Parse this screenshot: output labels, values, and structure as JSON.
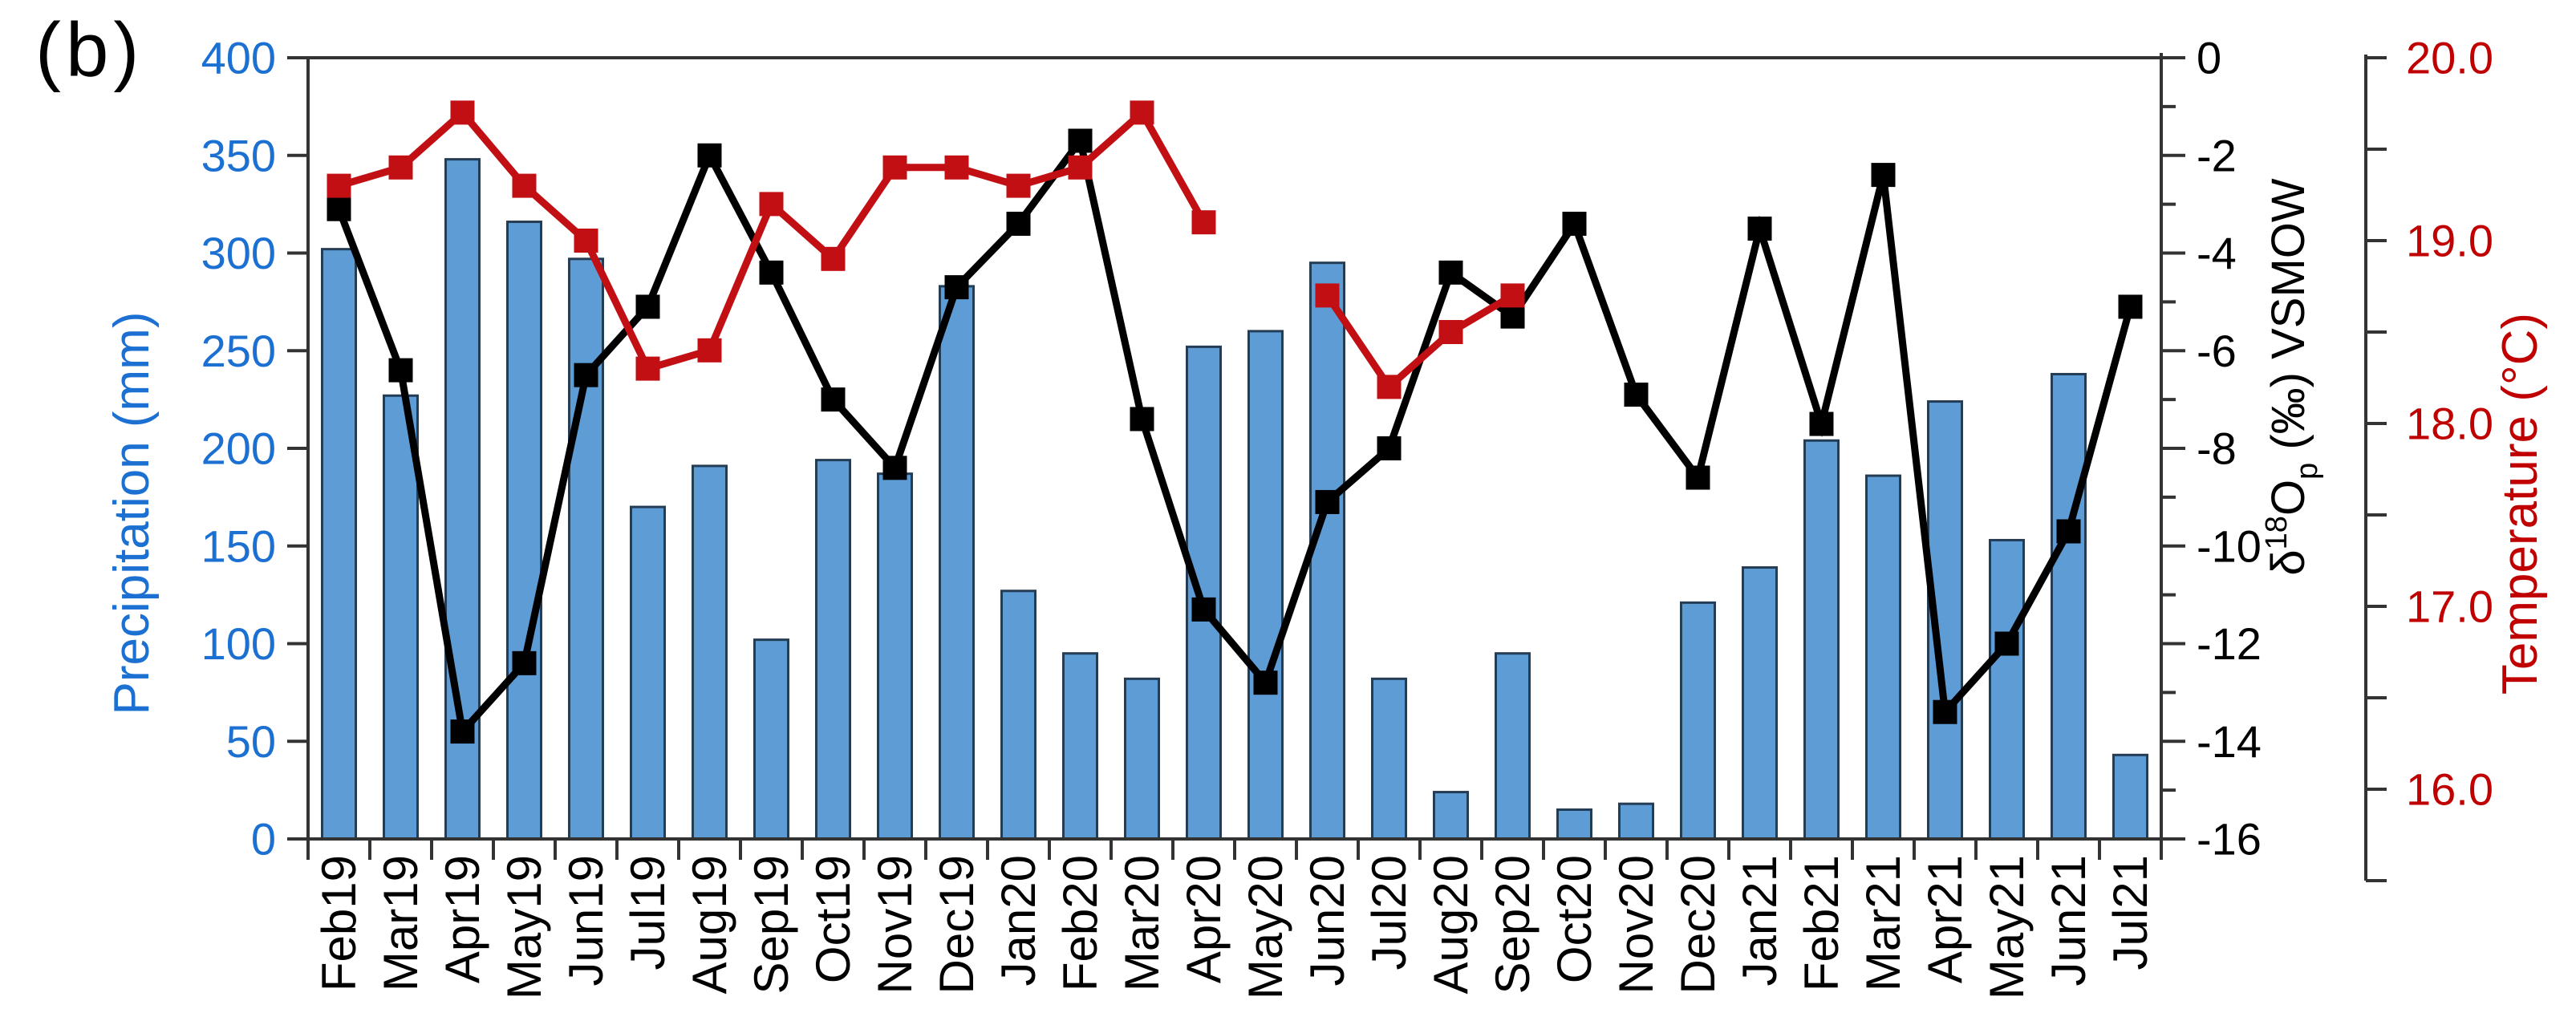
{
  "panel_label": "(b)",
  "colors": {
    "bar_fill": "#5E9CD6",
    "bar_stroke": "#243C54",
    "d18o_line": "#000000",
    "temperature_line": "#C20F13",
    "axis_line": "#333333",
    "left_axis_text": "#1B70D2",
    "temp_axis_text": "#C00000",
    "background": "#FFFFFF"
  },
  "chart_data": {
    "type": "bar",
    "title": "",
    "grid": false,
    "legend": "none",
    "categories": [
      "Feb19",
      "Mar19",
      "Apr19",
      "May19",
      "Jun19",
      "Jul19",
      "Aug19",
      "Sep19",
      "Oct19",
      "Nov19",
      "Dec19",
      "Jan20",
      "Feb20",
      "Mar20",
      "Apr20",
      "May20",
      "Jun20",
      "Jul20",
      "Aug20",
      "Sep20",
      "Oct20",
      "Nov20",
      "Dec20",
      "Jan21",
      "Feb21",
      "Mar21",
      "Apr21",
      "May21",
      "Jun21",
      "Jul21"
    ],
    "series": [
      {
        "name": "Precipitation",
        "kind": "bar",
        "axis": "left",
        "color": "#5E9CD6",
        "values": [
          302,
          227,
          348,
          316,
          297,
          170,
          191,
          102,
          194,
          187,
          283,
          127,
          95,
          82,
          252,
          260,
          295,
          82,
          24,
          95,
          15,
          18,
          121,
          139,
          204,
          186,
          224,
          153,
          238,
          43
        ]
      },
      {
        "name": "d18Op",
        "kind": "line",
        "axis": "right_d18o",
        "color": "#000000",
        "values": [
          -3.1,
          -6.4,
          -13.8,
          -12.4,
          -6.5,
          -5.1,
          -2.0,
          -4.4,
          -7.0,
          -8.4,
          -4.7,
          -3.4,
          -1.7,
          -7.4,
          -11.3,
          -12.8,
          -9.1,
          -8.0,
          -4.4,
          -5.3,
          -3.4,
          -6.9,
          -8.6,
          -3.5,
          -7.5,
          -2.4,
          -13.4,
          -12.0,
          -9.7,
          -5.1
        ]
      },
      {
        "name": "Temperature",
        "kind": "line",
        "axis": "right_temp",
        "color": "#C20F13",
        "values": [
          19.3,
          19.4,
          19.7,
          19.3,
          19.0,
          18.3,
          18.4,
          19.2,
          18.9,
          19.4,
          19.4,
          19.3,
          19.4,
          19.7,
          19.1,
          null,
          18.7,
          18.2,
          18.5,
          18.7,
          null,
          null,
          null,
          null,
          null,
          null,
          null,
          null,
          null,
          null
        ]
      }
    ],
    "axes": {
      "left": {
        "label": "Precipitation (mm)",
        "min": 0,
        "max": 400,
        "step": 50,
        "tick_labels": [
          "0",
          "50",
          "100",
          "150",
          "200",
          "250",
          "300",
          "350",
          "400"
        ]
      },
      "right_d18o": {
        "label": "δ18Op (‰) VSMOW",
        "label_parts": {
          "pre": "δ",
          "sup": "18",
          "mid": "O",
          "sub": "p",
          "post": " (‰) VSMOW"
        },
        "min": -16,
        "max": 0,
        "major_step": 2,
        "minor_step": 1,
        "tick_labels": [
          "0",
          "-2",
          "-4",
          "-6",
          "-8",
          "-10",
          "-12",
          "-14",
          "-16"
        ]
      },
      "right_temp": {
        "label": "Temperature (°C)",
        "top": 20.0,
        "bottom": 15.5,
        "tick_step": 0.5,
        "label_step": 1.0,
        "tick_labels": [
          "20.0",
          "19.0",
          "18.0",
          "17.0",
          "16.0"
        ]
      }
    },
    "x_axis": {
      "boundary_tick_count": 31,
      "label_rotation": -90
    }
  }
}
